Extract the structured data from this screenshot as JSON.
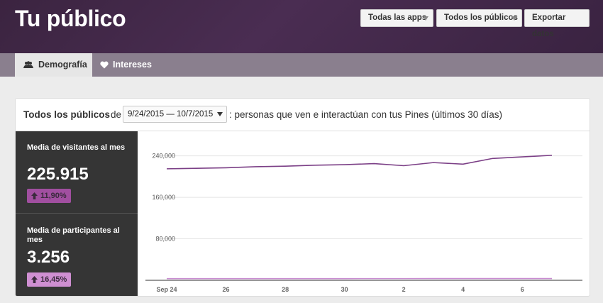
{
  "header": {
    "title": "Tu público",
    "apps_dropdown": "Todas las apps",
    "audiences_dropdown": "Todos los públicos",
    "export_button": "Exportar datos"
  },
  "tabs": [
    {
      "label": "Demografía",
      "icon": "users-icon",
      "active": true
    },
    {
      "label": "Intereses",
      "icon": "heart-icon",
      "active": false
    }
  ],
  "card": {
    "audience_label": "Todos los públicos",
    "connector": "de",
    "date_range": "9/24/2015 — 10/7/2015",
    "description": ": personas que ven e interactúan con tus Pines (últimos 30 días)"
  },
  "metrics": [
    {
      "label": "Media de visitantes al mes",
      "value": "225.915",
      "change": "11,90%",
      "direction": "up",
      "color": "#a14fa0"
    },
    {
      "label": "Media de participantes al mes",
      "value": "3.256",
      "change": "16,45%",
      "direction": "up",
      "color": "#cf8fd2"
    }
  ],
  "chart_data": {
    "type": "line",
    "x": [
      "Sep 24",
      "Sep 25",
      "Sep 26",
      "Sep 27",
      "Sep 28",
      "Sep 29",
      "Sep 30",
      "Oct 1",
      "Oct 2",
      "Oct 3",
      "Oct 4",
      "Oct 5",
      "Oct 6",
      "Oct 7"
    ],
    "x_tick_labels": [
      "Sep 24",
      "26",
      "28",
      "30",
      "2",
      "4",
      "6"
    ],
    "ylim": [
      0,
      260000
    ],
    "y_ticks": [
      80000,
      160000,
      240000
    ],
    "y_tick_labels": [
      "80,000",
      "160,000",
      "240,000"
    ],
    "series": [
      {
        "values": [
          215000,
          216000,
          217000,
          219000,
          220000,
          222000,
          223000,
          225000,
          221000,
          227000,
          224000,
          235000,
          238000,
          241000
        ],
        "color": "#7b3f86"
      },
      {
        "values": [
          3100,
          3120,
          3150,
          3180,
          3200,
          3210,
          3230,
          3250,
          3240,
          3270,
          3290,
          3310,
          3320,
          3330
        ],
        "color": "#c98cd1"
      }
    ],
    "grid": true,
    "legend": "none"
  }
}
